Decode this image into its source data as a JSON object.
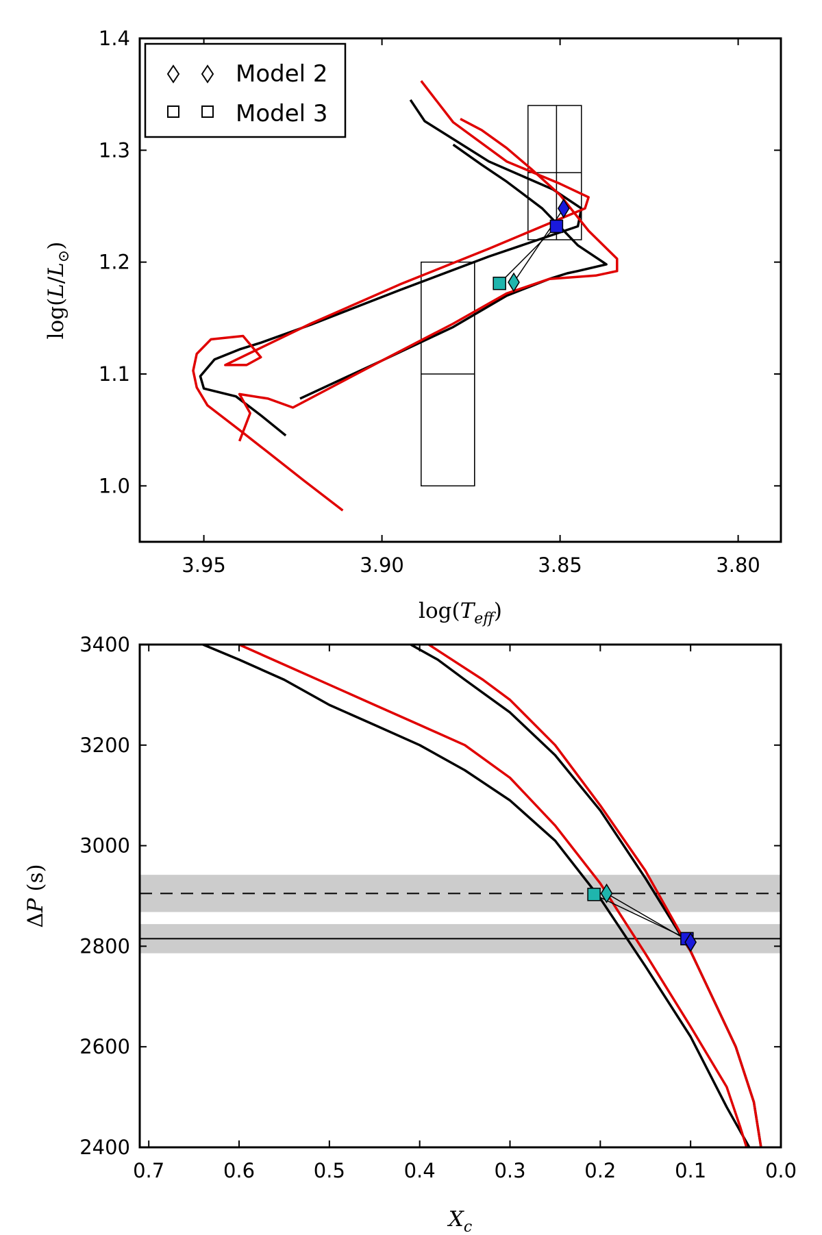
{
  "chart_data": [
    {
      "type": "line",
      "panel": "top",
      "xlabel": "log(T_eff)",
      "ylabel": "log(L/L_⊙)",
      "xlim": [
        3.968,
        3.788
      ],
      "ylim": [
        0.95,
        1.4
      ],
      "x_ticks": [
        3.95,
        3.9,
        3.85,
        3.8
      ],
      "x_tick_labels": [
        "3.95",
        "3.90",
        "3.85",
        "3.80"
      ],
      "y_ticks": [
        1.0,
        1.1,
        1.2,
        1.3,
        1.4
      ],
      "y_tick_labels": [
        "1.0",
        "1.1",
        "1.2",
        "1.3",
        "1.4"
      ],
      "legend": {
        "location": "top-left",
        "entries": [
          {
            "label": "Model 2",
            "marker": "diamond"
          },
          {
            "label": "Model 3",
            "marker": "square"
          }
        ]
      },
      "series": [
        {
          "name": "Model 2 track (black)",
          "color": "#000000",
          "points": [
            [
              3.927,
              1.045
            ],
            [
              3.934,
              1.063
            ],
            [
              3.941,
              1.08
            ],
            [
              3.95,
              1.087
            ],
            [
              3.951,
              1.098
            ],
            [
              3.947,
              1.113
            ],
            [
              3.94,
              1.122
            ],
            [
              3.934,
              1.128
            ],
            [
              3.92,
              1.144
            ],
            [
              3.895,
              1.175
            ],
            [
              3.87,
              1.205
            ],
            [
              3.845,
              1.232
            ],
            [
              3.844,
              1.248
            ],
            [
              3.852,
              1.265
            ],
            [
              3.87,
              1.29
            ],
            [
              3.88,
              1.31
            ],
            [
              3.888,
              1.326
            ],
            [
              3.892,
              1.345
            ]
          ]
        },
        {
          "name": "Model 2 track (red)",
          "color": "#e00000",
          "points": [
            [
              3.911,
              0.978
            ],
            [
              3.922,
              1.005
            ],
            [
              3.932,
              1.03
            ],
            [
              3.94,
              1.05
            ],
            [
              3.949,
              1.072
            ],
            [
              3.952,
              1.088
            ],
            [
              3.953,
              1.103
            ],
            [
              3.952,
              1.118
            ],
            [
              3.948,
              1.131
            ],
            [
              3.939,
              1.134
            ],
            [
              3.934,
              1.115
            ],
            [
              3.938,
              1.108
            ],
            [
              3.944,
              1.108
            ],
            [
              3.92,
              1.145
            ],
            [
              3.895,
              1.18
            ],
            [
              3.87,
              1.212
            ],
            [
              3.855,
              1.232
            ],
            [
              3.843,
              1.248
            ],
            [
              3.842,
              1.258
            ],
            [
              3.85,
              1.27
            ],
            [
              3.865,
              1.29
            ],
            [
              3.88,
              1.325
            ],
            [
              3.889,
              1.362
            ]
          ]
        },
        {
          "name": "Model 3 track (black)",
          "color": "#000000",
          "points": [
            [
              3.923,
              1.078
            ],
            [
              3.9,
              1.112
            ],
            [
              3.88,
              1.142
            ],
            [
              3.865,
              1.17
            ],
            [
              3.853,
              1.185
            ],
            [
              3.848,
              1.19
            ],
            [
              3.845,
              1.192
            ],
            [
              3.837,
              1.198
            ],
            [
              3.845,
              1.215
            ],
            [
              3.855,
              1.248
            ],
            [
              3.865,
              1.272
            ],
            [
              3.872,
              1.287
            ],
            [
              3.88,
              1.305
            ]
          ]
        },
        {
          "name": "Model 3 track (red)",
          "color": "#e00000",
          "points": [
            [
              3.94,
              1.04
            ],
            [
              3.937,
              1.065
            ],
            [
              3.94,
              1.082
            ],
            [
              3.932,
              1.078
            ],
            [
              3.925,
              1.07
            ],
            [
              3.9,
              1.112
            ],
            [
              3.88,
              1.145
            ],
            [
              3.865,
              1.172
            ],
            [
              3.853,
              1.185
            ],
            [
              3.84,
              1.188
            ],
            [
              3.834,
              1.192
            ],
            [
              3.834,
              1.203
            ],
            [
              3.842,
              1.228
            ],
            [
              3.85,
              1.26
            ],
            [
              3.858,
              1.283
            ],
            [
              3.865,
              1.302
            ],
            [
              3.872,
              1.318
            ],
            [
              3.878,
              1.328
            ]
          ]
        }
      ],
      "markers": [
        {
          "model": "Model 2",
          "shape": "diamond",
          "color": "#1a1adb",
          "x": 3.849,
          "y": 1.248
        },
        {
          "model": "Model 3",
          "shape": "square",
          "color": "#1a1adb",
          "x": 3.851,
          "y": 1.232
        },
        {
          "model": "Model 2",
          "shape": "diamond",
          "color": "#1fb5ad",
          "x": 3.863,
          "y": 1.182
        },
        {
          "model": "Model 3",
          "shape": "square",
          "color": "#1fb5ad",
          "x": 3.867,
          "y": 1.181
        }
      ],
      "connectors": [
        [
          [
            3.849,
            1.248
          ],
          [
            3.863,
            1.182
          ]
        ],
        [
          [
            3.851,
            1.232
          ],
          [
            3.867,
            1.181
          ]
        ]
      ],
      "error_boxes": [
        {
          "x_range": [
            3.844,
            3.859
          ],
          "y_range": [
            1.22,
            1.34
          ],
          "x_mid": 3.851,
          "y_mid": 1.28
        },
        {
          "x_range": [
            3.874,
            3.889
          ],
          "y_range": [
            1.0,
            1.2
          ],
          "x_mid": 3.874,
          "y_mid": 1.1
        }
      ]
    },
    {
      "type": "line",
      "panel": "bottom",
      "xlabel": "X_c",
      "ylabel": "ΔP (s)",
      "xlim": [
        0.71,
        0.0
      ],
      "ylim": [
        2400,
        3400
      ],
      "x_ticks": [
        0.7,
        0.6,
        0.5,
        0.4,
        0.3,
        0.2,
        0.1,
        0.0
      ],
      "x_tick_labels": [
        "0.7",
        "0.6",
        "0.5",
        "0.4",
        "0.3",
        "0.2",
        "0.1",
        "0.0"
      ],
      "y_ticks": [
        2400,
        2600,
        2800,
        3000,
        3200,
        3400
      ],
      "y_tick_labels": [
        "2400",
        "2600",
        "2800",
        "3000",
        "3200",
        "3400"
      ],
      "bands": [
        {
          "center": 2905,
          "low": 2868,
          "high": 2942,
          "line_style": "dashed"
        },
        {
          "center": 2815,
          "low": 2786,
          "high": 2844,
          "line_style": "solid"
        }
      ],
      "series": [
        {
          "name": "Model 3 (black)",
          "color": "#000000",
          "points": [
            [
              0.64,
              3400
            ],
            [
              0.6,
              3370
            ],
            [
              0.55,
              3330
            ],
            [
              0.5,
              3280
            ],
            [
              0.45,
              3240
            ],
            [
              0.4,
              3200
            ],
            [
              0.35,
              3150
            ],
            [
              0.3,
              3090
            ],
            [
              0.25,
              3010
            ],
            [
              0.2,
              2895
            ],
            [
              0.15,
              2760
            ],
            [
              0.1,
              2620
            ],
            [
              0.06,
              2480
            ],
            [
              0.035,
              2400
            ]
          ]
        },
        {
          "name": "Model 3 (red)",
          "color": "#e00000",
          "points": [
            [
              0.6,
              3400
            ],
            [
              0.55,
              3360
            ],
            [
              0.5,
              3320
            ],
            [
              0.45,
              3280
            ],
            [
              0.4,
              3240
            ],
            [
              0.35,
              3200
            ],
            [
              0.3,
              3135
            ],
            [
              0.25,
              3040
            ],
            [
              0.2,
              2925
            ],
            [
              0.15,
              2785
            ],
            [
              0.1,
              2640
            ],
            [
              0.06,
              2520
            ],
            [
              0.045,
              2440
            ],
            [
              0.038,
              2400
            ]
          ]
        },
        {
          "name": "Model 2 (black)",
          "color": "#000000",
          "points": [
            [
              0.41,
              3400
            ],
            [
              0.38,
              3370
            ],
            [
              0.35,
              3330
            ],
            [
              0.3,
              3265
            ],
            [
              0.25,
              3180
            ],
            [
              0.2,
              3070
            ],
            [
              0.15,
              2935
            ],
            [
              0.1,
              2790
            ],
            [
              0.05,
              2600
            ],
            [
              0.03,
              2490
            ],
            [
              0.022,
              2400
            ]
          ]
        },
        {
          "name": "Model 2 (red)",
          "color": "#e00000",
          "points": [
            [
              0.39,
              3400
            ],
            [
              0.36,
              3365
            ],
            [
              0.33,
              3330
            ],
            [
              0.3,
              3290
            ],
            [
              0.25,
              3200
            ],
            [
              0.2,
              3080
            ],
            [
              0.15,
              2950
            ],
            [
              0.1,
              2790
            ],
            [
              0.05,
              2600
            ],
            [
              0.03,
              2490
            ],
            [
              0.022,
              2400
            ]
          ]
        }
      ],
      "markers": [
        {
          "model": "Model 3",
          "shape": "square",
          "color": "#1fb5ad",
          "x": 0.207,
          "y": 2903
        },
        {
          "model": "Model 2",
          "shape": "diamond",
          "color": "#1fb5ad",
          "x": 0.193,
          "y": 2905
        },
        {
          "model": "Model 3",
          "shape": "square",
          "color": "#1a1adb",
          "x": 0.104,
          "y": 2815
        },
        {
          "model": "Model 2",
          "shape": "diamond",
          "color": "#1a1adb",
          "x": 0.1,
          "y": 2808
        }
      ],
      "connectors": [
        [
          [
            0.207,
            2903
          ],
          [
            0.104,
            2815
          ]
        ],
        [
          [
            0.193,
            2905
          ],
          [
            0.1,
            2808
          ]
        ]
      ]
    }
  ]
}
